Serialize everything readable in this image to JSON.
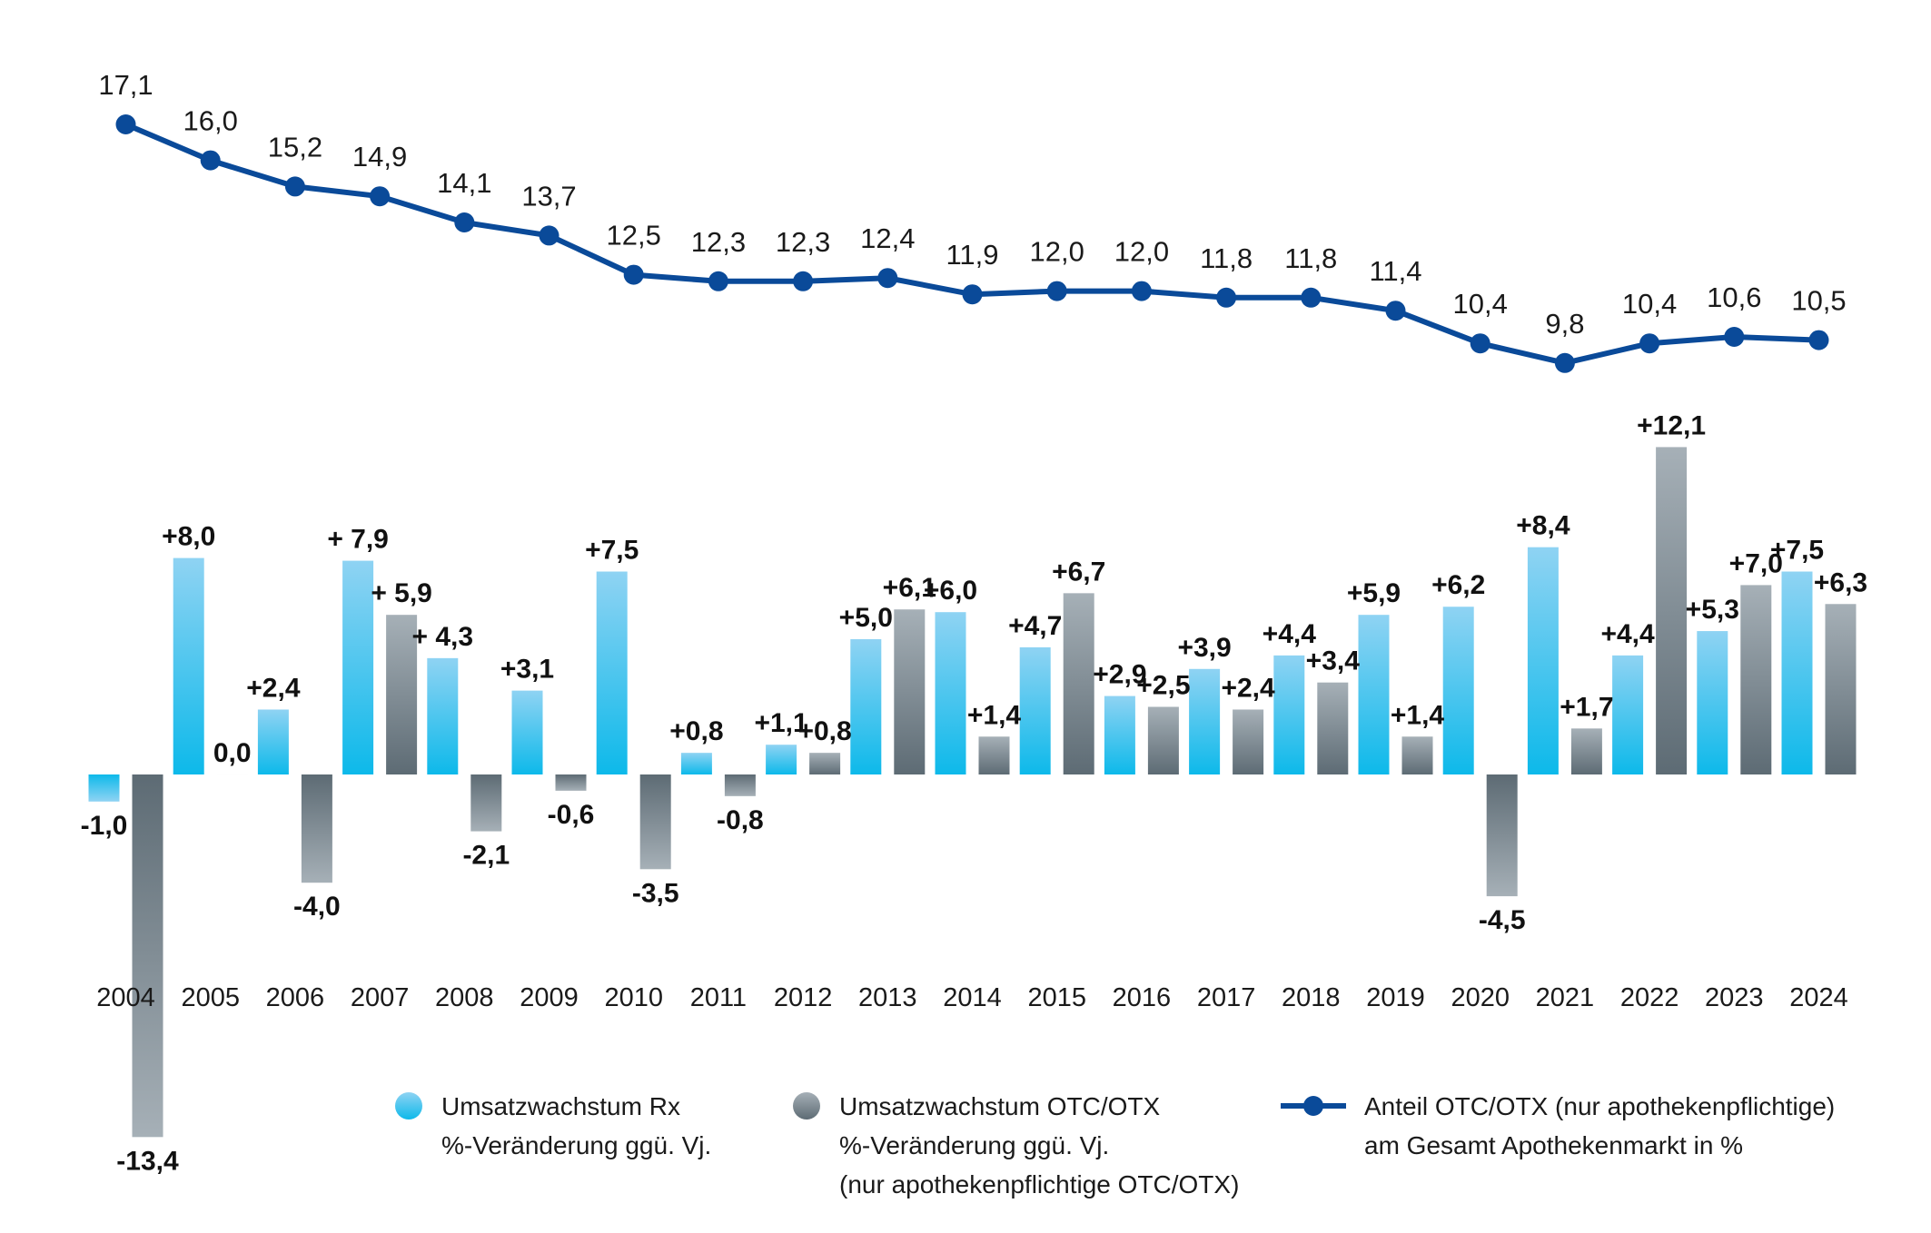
{
  "colors": {
    "rx_top": "#8fd3f3",
    "rx_bottom": "#0db9ea",
    "otc_top": "#a6b0b7",
    "otc_bottom": "#5d6b74",
    "line": "#0a4a99"
  },
  "legend": [
    {
      "key": "rx",
      "icon": "light-blue-dot-icon",
      "lines": [
        "Umsatzwachstum Rx",
        "%-Veränderung ggü. Vj."
      ]
    },
    {
      "key": "otc",
      "icon": "gray-dot-icon",
      "lines": [
        "Umsatzwachstum OTC/OTX",
        "%-Veränderung ggü. Vj.",
        "(nur apothekenpflichtige OTC/OTX)"
      ]
    },
    {
      "key": "line",
      "icon": "line-marker-icon",
      "lines": [
        "Anteil OTC/OTX (nur apothekenpflichtige)",
        "am Gesamt Apothekenmarkt in %"
      ]
    }
  ],
  "chart_data": {
    "type": "bar",
    "categories": [
      "2004",
      "2005",
      "2006",
      "2007",
      "2008",
      "2009",
      "2010",
      "2011",
      "2012",
      "2013",
      "2014",
      "2015",
      "2016",
      "2017",
      "2018",
      "2019",
      "2020",
      "2021",
      "2022",
      "2023",
      "2024"
    ],
    "series": [
      {
        "name": "Umsatzwachstum Rx %-Veränderung ggü. Vj.",
        "type": "bar",
        "values": [
          -1.0,
          8.0,
          2.4,
          7.9,
          4.3,
          3.1,
          7.5,
          0.8,
          1.1,
          5.0,
          6.0,
          4.7,
          2.9,
          3.9,
          4.4,
          5.9,
          6.2,
          8.4,
          4.4,
          5.3,
          7.5
        ],
        "labels": [
          "-1,0",
          "+8,0",
          "+2,4",
          "+ 7,9",
          "+ 4,3",
          "+3,1",
          "+7,5",
          "+0,8",
          "+1,1",
          "+5,0",
          "+6,0",
          "+4,7",
          "+2,9",
          "+3,9",
          "+4,4",
          "+5,9",
          "+6,2",
          "+8,4",
          "+4,4",
          "+5,3",
          "+7,5"
        ]
      },
      {
        "name": "Umsatzwachstum OTC/OTX %-Veränderung ggü. Vj. (nur apothekenpflichtige OTC/OTX)",
        "type": "bar",
        "values": [
          -13.4,
          0.0,
          -4.0,
          5.9,
          -2.1,
          -0.6,
          -3.5,
          -0.8,
          0.8,
          6.1,
          1.4,
          6.7,
          2.5,
          2.4,
          3.4,
          1.4,
          -4.5,
          1.7,
          12.1,
          7.0,
          6.3
        ],
        "labels": [
          "-13,4",
          "0,0",
          "-4,0",
          "+ 5,9",
          "-2,1",
          "-0,6",
          "-3,5",
          "-0,8",
          "+0,8",
          "+6,1",
          "+1,4",
          "+6,7",
          "+2,5",
          "+2,4",
          "+3,4",
          "+1,4",
          "-4,5",
          "+1,7",
          "+12,1",
          "+7,0",
          "+6,3"
        ]
      },
      {
        "name": "Anteil OTC/OTX (nur apothekenpflichtige) am Gesamt Apothekenmarkt in %",
        "type": "line",
        "values": [
          17.1,
          16.0,
          15.2,
          14.9,
          14.1,
          13.7,
          12.5,
          12.3,
          12.3,
          12.4,
          11.9,
          12.0,
          12.0,
          11.8,
          11.8,
          11.4,
          10.4,
          9.8,
          10.4,
          10.6,
          10.5
        ],
        "labels": [
          "17,1",
          "16,0",
          "15,2",
          "14,9",
          "14,1",
          "13,7",
          "12,5",
          "12,3",
          "12,3",
          "12,4",
          "11,9",
          "12,0",
          "12,0",
          "11,8",
          "11,8",
          "11,4",
          "10,4",
          "9,8",
          "10,4",
          "10,6",
          "10,5"
        ]
      }
    ],
    "title": "",
    "xlabel": "",
    "ylabel": "",
    "grid": false,
    "legend_position": "bottom"
  }
}
